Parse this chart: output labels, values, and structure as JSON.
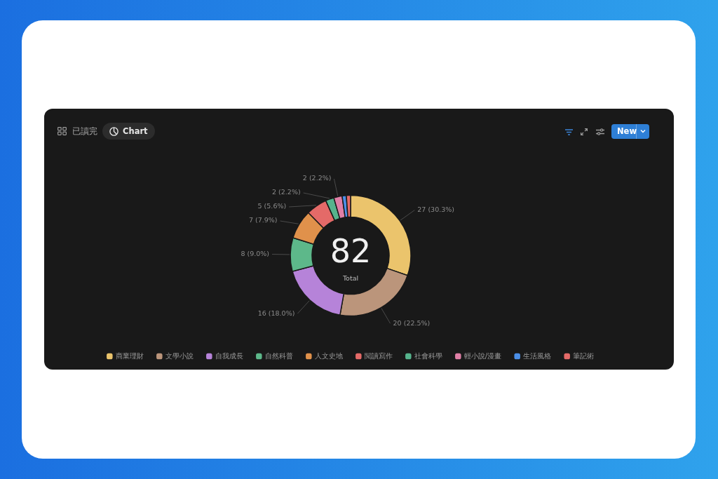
{
  "chart_data": {
    "type": "donut",
    "title": "已讀完",
    "categories": [
      "商業理財",
      "文學小說",
      "自我成長",
      "自然科普",
      "人文史地",
      "閱讀寫作",
      "社會科學",
      "輕小說/漫畫",
      "生活風格",
      "筆記術"
    ],
    "values": [
      27,
      20,
      16,
      8,
      7,
      5,
      2,
      2,
      1,
      1
    ],
    "colors": [
      "#ebc46c",
      "#bb957b",
      "#b683d9",
      "#5db88a",
      "#e0914b",
      "#e46a68",
      "#56b48d",
      "#e07fa6",
      "#4b8fe8",
      "#e46a68"
    ],
    "value_labels": [
      "27 (30.3%)",
      "20 (22.5%)",
      "16 (18.0%)",
      "8 (9.0%)",
      "7 (7.9%)",
      "5 (5.6%)",
      "2 (2.2%)",
      "2 (2.2%)",
      null,
      null
    ],
    "legend": "bottom",
    "annotations": [
      "82",
      "Total",
      "Chart",
      "New"
    ]
  }
}
